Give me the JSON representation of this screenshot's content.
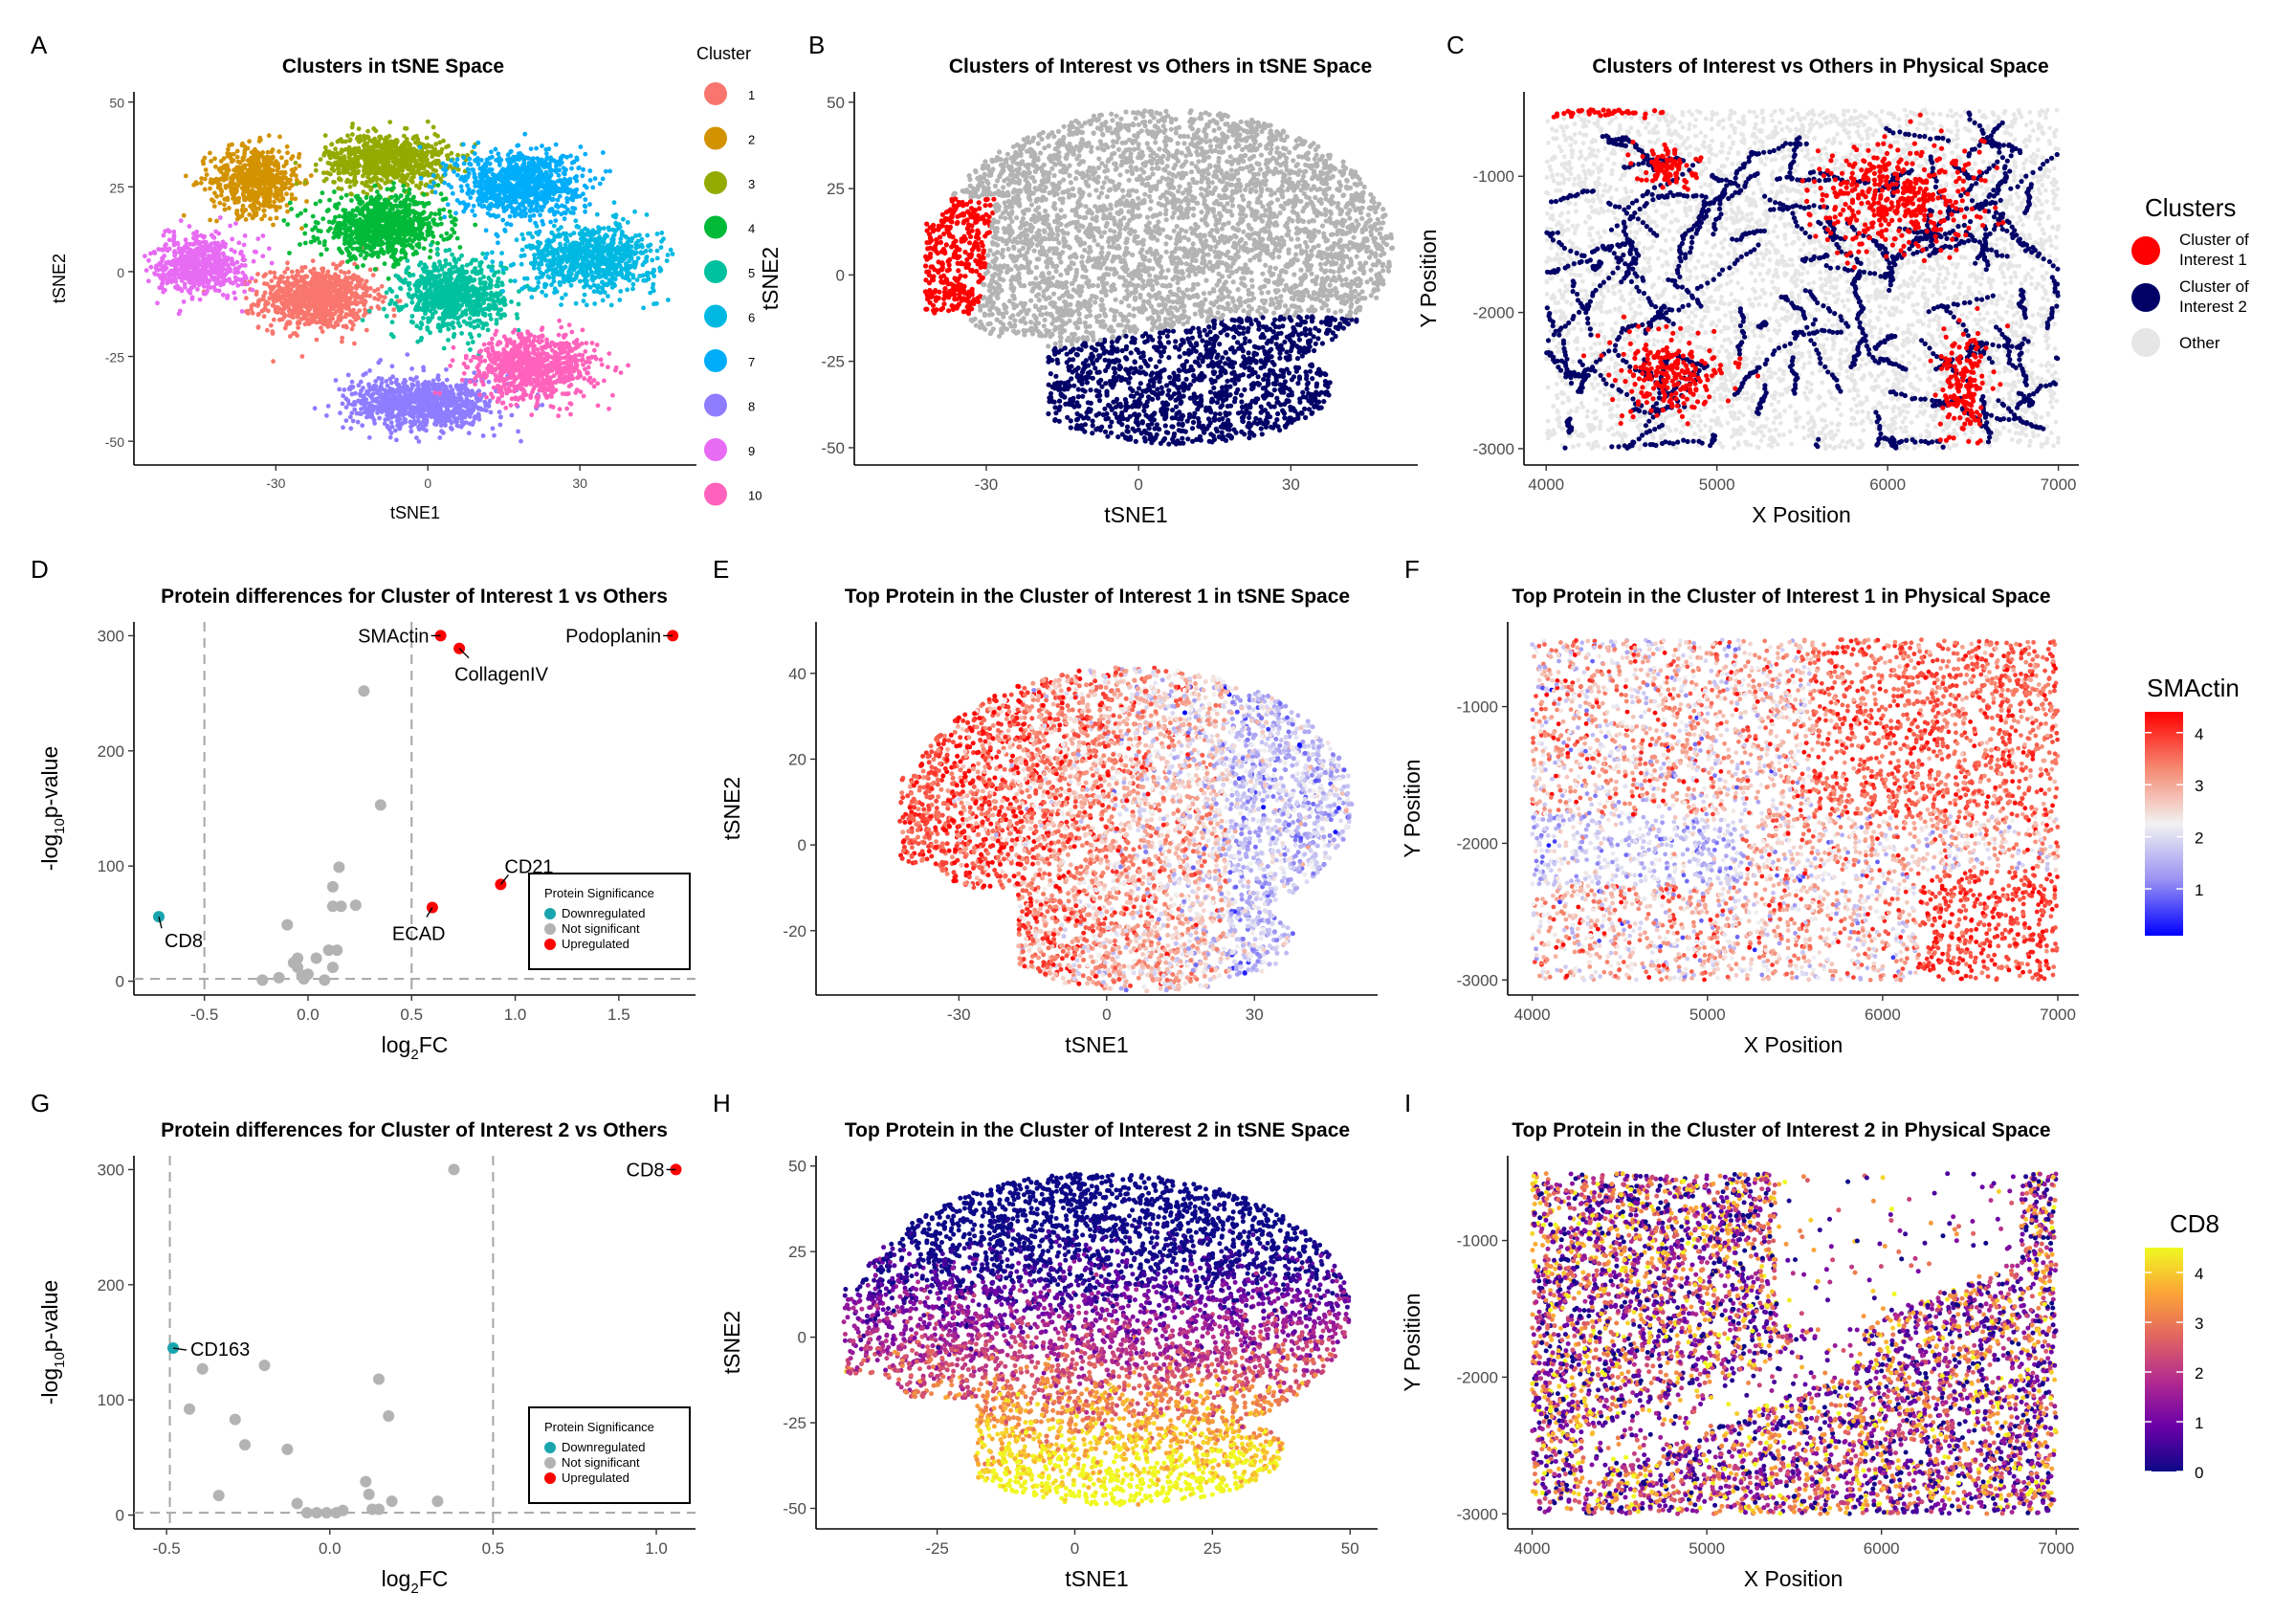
{
  "panel_labels": [
    "A",
    "B",
    "C",
    "D",
    "E",
    "F",
    "G",
    "H",
    "I"
  ],
  "chart_data": [
    {
      "panel": "A",
      "type": "scatter",
      "title": "Clusters in tSNE Space",
      "xlabel": "tSNE1",
      "ylabel": "tSNE2",
      "xticks": [
        -30,
        0,
        30
      ],
      "yticks": [
        -50,
        -25,
        0,
        25,
        50
      ],
      "xlim": [
        -58,
        53
      ],
      "ylim": [
        -57,
        53
      ],
      "legend_title": "Cluster",
      "legend_position": "right",
      "series": [
        {
          "name": "1",
          "color": "#F8766D",
          "center": [
            -22,
            -8
          ],
          "spread": [
            10,
            8
          ],
          "n": 900
        },
        {
          "name": "2",
          "color": "#D39200",
          "center": [
            -34,
            27
          ],
          "spread": [
            8,
            9
          ],
          "n": 600
        },
        {
          "name": "3",
          "color": "#93AA00",
          "center": [
            -8,
            33
          ],
          "spread": [
            11,
            7
          ],
          "n": 800
        },
        {
          "name": "4",
          "color": "#00BA38",
          "center": [
            -9,
            13
          ],
          "spread": [
            11,
            8
          ],
          "n": 900
        },
        {
          "name": "5",
          "color": "#00C19F",
          "center": [
            5,
            -7
          ],
          "spread": [
            9,
            9
          ],
          "n": 800
        },
        {
          "name": "6",
          "color": "#00B9E3",
          "center": [
            32,
            4
          ],
          "spread": [
            12,
            9
          ],
          "n": 800
        },
        {
          "name": "7",
          "color": "#00ADFA",
          "center": [
            18,
            26
          ],
          "spread": [
            11,
            9
          ],
          "n": 900
        },
        {
          "name": "8",
          "color": "#8F7CFF",
          "center": [
            -1,
            -39
          ],
          "spread": [
            13,
            7
          ],
          "n": 900
        },
        {
          "name": "9",
          "color": "#E76BF3",
          "center": [
            -45,
            2
          ],
          "spread": [
            8,
            8
          ],
          "n": 600
        },
        {
          "name": "10",
          "color": "#FF62BC",
          "center": [
            21,
            -28
          ],
          "spread": [
            11,
            9
          ],
          "n": 800
        }
      ]
    },
    {
      "panel": "B",
      "type": "scatter",
      "title": "Clusters of Interest vs Others in tSNE Space",
      "xlabel": "tSNE1",
      "ylabel": "tSNE2",
      "xticks": [
        -30,
        0,
        30
      ],
      "yticks": [
        -50,
        -25,
        0,
        25,
        50
      ],
      "xlim": [
        -56,
        55
      ],
      "ylim": [
        -55,
        53
      ],
      "series": [
        {
          "name": "Other",
          "color": "#b3b3b3"
        },
        {
          "name": "Cluster of Interest 1",
          "color": "#ff0000"
        },
        {
          "name": "Cluster of Interest 2",
          "color": "#000066"
        }
      ]
    },
    {
      "panel": "C",
      "type": "scatter",
      "title": "Clusters of Interest vs Others in Physical Space",
      "xlabel": "X Position",
      "ylabel": "Y Position",
      "xticks": [
        4000,
        5000,
        6000,
        7000
      ],
      "yticks": [
        -3000,
        -2000,
        -1000
      ],
      "xlim": [
        3870,
        7120
      ],
      "ylim": [
        -3120,
        -380
      ],
      "legend_title": "Clusters",
      "legend_position": "right",
      "series": [
        {
          "name": "Cluster of Interest 1",
          "legend_lines": [
            "Cluster of",
            "Interest 1"
          ],
          "color": "#ff0000"
        },
        {
          "name": "Cluster of Interest 2",
          "legend_lines": [
            "Cluster of",
            "Interest 2"
          ],
          "color": "#000066"
        },
        {
          "name": "Other",
          "legend_lines": [
            "Other"
          ],
          "color": "#e6e6e6"
        }
      ]
    },
    {
      "panel": "D",
      "type": "scatter",
      "title": "Protein differences for Cluster of Interest 1 vs Others",
      "xlabel": "log2FC",
      "ylabel": "-log10p-value",
      "xticks": [
        -0.5,
        0.0,
        0.5,
        1.0,
        1.5
      ],
      "xtick_labels": [
        "-0.5",
        "0.0",
        "0.5",
        "1.0",
        "1.5"
      ],
      "yticks": [
        0,
        100,
        200,
        300
      ],
      "xlim": [
        -0.84,
        1.87
      ],
      "ylim": [
        -12,
        312
      ],
      "vlines": [
        -0.5,
        0.5
      ],
      "hline": 2,
      "legend_title": "Protein Significance",
      "legend_position": "bottom-right",
      "series": [
        {
          "name": "Downregulated",
          "color": "#1AA5AE",
          "points": [
            [
              -0.72,
              56
            ]
          ]
        },
        {
          "name": "Not significant",
          "color": "#b3b3b3",
          "points": [
            [
              0.27,
              252
            ],
            [
              0.35,
              153
            ],
            [
              0.15,
              99
            ],
            [
              0.12,
              82
            ],
            [
              0.23,
              66
            ],
            [
              0.16,
              65
            ],
            [
              0.12,
              65
            ],
            [
              -0.1,
              49
            ],
            [
              0.14,
              27
            ],
            [
              0.1,
              27
            ],
            [
              0.04,
              20
            ],
            [
              -0.05,
              20
            ],
            [
              -0.07,
              16
            ],
            [
              -0.05,
              12
            ],
            [
              0.12,
              12
            ],
            [
              0.0,
              6
            ],
            [
              -0.03,
              5
            ],
            [
              -0.14,
              3
            ],
            [
              -0.02,
              2
            ],
            [
              -0.22,
              1
            ],
            [
              0.08,
              1
            ]
          ]
        },
        {
          "name": "Upregulated",
          "color": "#ff0000",
          "points": [
            [
              0.64,
              300
            ],
            [
              0.73,
              289
            ],
            [
              1.76,
              300
            ],
            [
              0.93,
              84
            ],
            [
              0.6,
              64
            ]
          ]
        }
      ],
      "annotations": [
        {
          "text": "CD8",
          "x": -0.72,
          "y": 56
        },
        {
          "text": "SMActin",
          "x": 0.64,
          "y": 300
        },
        {
          "text": "CollagenIV",
          "x": 0.73,
          "y": 289
        },
        {
          "text": "Podoplanin",
          "x": 1.76,
          "y": 300
        },
        {
          "text": "CD21",
          "x": 0.93,
          "y": 84
        },
        {
          "text": "ECAD",
          "x": 0.6,
          "y": 64
        }
      ]
    },
    {
      "panel": "E",
      "type": "scatter",
      "title": "Top Protein in the Cluster of Interest 1 in tSNE Space",
      "xlabel": "tSNE1",
      "ylabel": "tSNE2",
      "xticks": [
        -30,
        0,
        30
      ],
      "yticks": [
        -20,
        0,
        20,
        40
      ],
      "xlim": [
        -59,
        55
      ],
      "ylim": [
        -35,
        52
      ],
      "color_by": "SMActin"
    },
    {
      "panel": "F",
      "type": "scatter",
      "title": "Top Protein in the Cluster of Interest 1 in Physical Space",
      "xlabel": "X Position",
      "ylabel": "Y Position",
      "xticks": [
        4000,
        5000,
        6000,
        7000
      ],
      "yticks": [
        -3000,
        -2000,
        -1000
      ],
      "xlim": [
        3860,
        7120
      ],
      "ylim": [
        -3110,
        -380
      ],
      "color_by": "SMActin",
      "colorbar": {
        "title": "SMActin",
        "min": 0.1,
        "max": 4.4,
        "ticks": [
          1,
          2,
          3,
          4
        ],
        "colors": [
          "#0000ff",
          "#9a92f3",
          "#f2f2f2",
          "#f68870",
          "#ff0000"
        ]
      }
    },
    {
      "panel": "G",
      "type": "scatter",
      "title": "Protein differences for Cluster of Interest 2 vs Others",
      "xlabel": "log2FC",
      "ylabel": "-log10p-value",
      "xticks": [
        -0.5,
        0.0,
        0.5,
        1.0
      ],
      "xtick_labels": [
        "-0.5",
        "0.0",
        "0.5",
        "1.0"
      ],
      "yticks": [
        0,
        100,
        200,
        300
      ],
      "xlim": [
        -0.6,
        1.12
      ],
      "ylim": [
        -12,
        312
      ],
      "vlines": [
        -0.49,
        0.5
      ],
      "hline": 2,
      "legend_title": "Protein Significance",
      "legend_position": "bottom-right",
      "series": [
        {
          "name": "Downregulated",
          "color": "#1AA5AE",
          "points": [
            [
              -0.48,
              145
            ]
          ]
        },
        {
          "name": "Not significant",
          "color": "#b3b3b3",
          "points": [
            [
              0.38,
              300
            ],
            [
              -0.2,
              130
            ],
            [
              -0.39,
              127
            ],
            [
              0.15,
              118
            ],
            [
              -0.43,
              92
            ],
            [
              0.18,
              86
            ],
            [
              -0.29,
              83
            ],
            [
              -0.26,
              61
            ],
            [
              -0.13,
              57
            ],
            [
              -0.34,
              17
            ],
            [
              0.11,
              29
            ],
            [
              0.33,
              12
            ],
            [
              0.19,
              12
            ],
            [
              0.12,
              18
            ],
            [
              -0.1,
              10
            ],
            [
              0.13,
              5
            ],
            [
              0.15,
              5
            ],
            [
              0.04,
              4
            ],
            [
              -0.07,
              2
            ],
            [
              -0.04,
              2
            ],
            [
              -0.01,
              2
            ],
            [
              0.02,
              2
            ]
          ]
        },
        {
          "name": "Upregulated",
          "color": "#ff0000",
          "points": [
            [
              1.06,
              300
            ]
          ]
        }
      ],
      "annotations": [
        {
          "text": "CD163",
          "x": -0.48,
          "y": 145
        },
        {
          "text": "CD8",
          "x": 1.06,
          "y": 300
        }
      ]
    },
    {
      "panel": "H",
      "type": "scatter",
      "title": "Top Protein in the Cluster of Interest 2 in tSNE Space",
      "xlabel": "tSNE1",
      "ylabel": "tSNE2",
      "xticks": [
        -25,
        0,
        25,
        50
      ],
      "yticks": [
        -50,
        -25,
        0,
        25,
        50
      ],
      "xlim": [
        -47,
        55
      ],
      "ylim": [
        -56,
        53
      ],
      "color_by": "CD8"
    },
    {
      "panel": "I",
      "type": "scatter",
      "title": "Top Protein in the Cluster of Interest 2 in Physical Space",
      "xlabel": "X Position",
      "ylabel": "Y Position",
      "xticks": [
        4000,
        5000,
        6000,
        7000
      ],
      "yticks": [
        -3000,
        -2000,
        -1000
      ],
      "xlim": [
        3860,
        7130
      ],
      "ylim": [
        -3110,
        -380
      ],
      "color_by": "CD8",
      "colorbar": {
        "title": "CD8",
        "min": 0,
        "max": 4.5,
        "ticks": [
          0,
          1,
          2,
          3,
          4
        ],
        "colors": [
          "#0d0887",
          "#6a00a8",
          "#b12a90",
          "#e16462",
          "#fca636",
          "#f0f921"
        ]
      }
    }
  ]
}
